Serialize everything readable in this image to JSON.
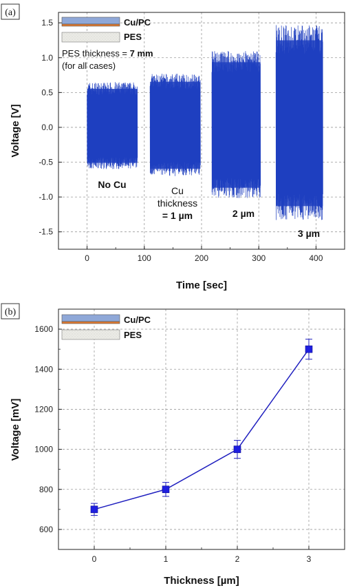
{
  "chart_data": [
    {
      "panel": "(a)",
      "type": "line",
      "xlabel": "Time [sec]",
      "ylabel": "Voltage [V]",
      "xlim": [
        -50,
        450
      ],
      "ylim": [
        -1.75,
        1.65
      ],
      "xticks": [
        "0",
        "100",
        "200",
        "300",
        "400"
      ],
      "yticks": [
        "-1.5",
        "-1.0",
        "-0.5",
        "0.0",
        "0.5",
        "1.0",
        "1.5"
      ],
      "grid": true,
      "series_color": "#1f3fbf",
      "segments": [
        {
          "label": "No Cu",
          "x_start": 0,
          "x_end": 88,
          "v_max": 0.65,
          "v_min": -0.6
        },
        {
          "label": "Cu thickness = 1 µm",
          "x_start": 110,
          "x_end": 198,
          "v_max": 0.77,
          "v_min": -0.7
        },
        {
          "label": "2 µm",
          "x_start": 218,
          "x_end": 303,
          "v_max": 1.1,
          "v_min": -1.02
        },
        {
          "label": "3 µm",
          "x_start": 330,
          "x_end": 412,
          "v_max": 1.47,
          "v_min": -1.33
        }
      ],
      "annotations": {
        "no_cu": "No Cu",
        "cu_line1": "Cu",
        "cu_line2": "thickness",
        "cu_line3": "= 1 µm",
        "two": "2 µm",
        "three": "3 µm",
        "note_prefix": "PES thickness = ",
        "note_value": "7 mm",
        "note_line2": "(for all cases)"
      },
      "legend": [
        {
          "label": "Cu/PC",
          "swatch": "cu-pc"
        },
        {
          "label": "PES",
          "swatch": "pes"
        }
      ]
    },
    {
      "panel": "(b)",
      "type": "line",
      "xlabel": "Thickness [µm]",
      "ylabel": "Voltage [mV]",
      "xlim": [
        -0.5,
        3.5
      ],
      "ylim": [
        500,
        1700
      ],
      "xticks": [
        "0",
        "1",
        "2",
        "3"
      ],
      "yticks": [
        "600",
        "800",
        "1000",
        "1200",
        "1400",
        "1600"
      ],
      "grid": true,
      "series_color": "#1f1fbf",
      "x": [
        0,
        1,
        2,
        3
      ],
      "y": [
        700,
        800,
        1000,
        1500
      ],
      "yerr": [
        30,
        35,
        45,
        50
      ],
      "legend": [
        {
          "label": "Cu/PC",
          "swatch": "cu-pc"
        },
        {
          "label": "PES",
          "swatch": "pes"
        }
      ]
    }
  ],
  "colors": {
    "cu_layer": "#e07a30",
    "pc_layer": "#8fa8d8",
    "pes_fill": "#ebebe6",
    "marker": "#1f1fe0",
    "line": "#1f1fbf"
  }
}
